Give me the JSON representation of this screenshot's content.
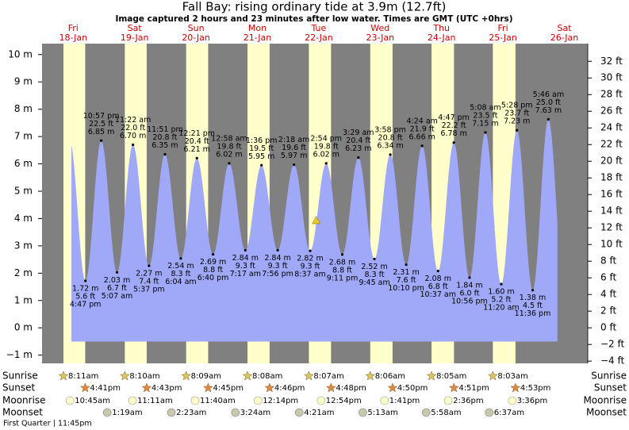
{
  "chart_data": {
    "type": "tide",
    "title": "Fall Bay: rising  ordinary tide at 3.9m (12.7ft)",
    "subtitle": "Image captured 2 hours and 23 minutes after low water. Times are GMT (UTC +0hrs)",
    "current_value": 3.9,
    "ylim": [
      -1.3,
      10.4
    ],
    "yticks": [
      {
        "value": -1,
        "label": "−1 m"
      },
      {
        "value": 0,
        "label": "0 m"
      },
      {
        "value": 1,
        "label": "1 m"
      },
      {
        "value": 2,
        "label": "2 m"
      },
      {
        "value": 3,
        "label": "3 m"
      },
      {
        "value": 4,
        "label": "4 m"
      },
      {
        "value": 5,
        "label": "5 m"
      },
      {
        "value": 6,
        "label": "6 m"
      },
      {
        "value": 7,
        "label": "7 m"
      },
      {
        "value": 8,
        "label": "8 m"
      },
      {
        "value": 9,
        "label": "9 m"
      },
      {
        "value": 10,
        "label": "10 m"
      }
    ],
    "y2lim": [
      -4.27,
      34.12
    ],
    "y2ticks": [
      {
        "value": -4,
        "label": "−4 ft"
      },
      {
        "value": -2,
        "label": "−2 ft"
      },
      {
        "value": 0,
        "label": "0 ft"
      },
      {
        "value": 2,
        "label": "2 ft"
      },
      {
        "value": 4,
        "label": "4 ft"
      },
      {
        "value": 6,
        "label": "6 ft"
      },
      {
        "value": 8,
        "label": "8 ft"
      },
      {
        "value": 10,
        "label": "10 ft"
      },
      {
        "value": 12,
        "label": "12 ft"
      },
      {
        "value": 14,
        "label": "14 ft"
      },
      {
        "value": 16,
        "label": "16 ft"
      },
      {
        "value": 18,
        "label": "18 ft"
      },
      {
        "value": 20,
        "label": "20 ft"
      },
      {
        "value": 22,
        "label": "22 ft"
      },
      {
        "value": 24,
        "label": "24 ft"
      },
      {
        "value": 26,
        "label": "26 ft"
      },
      {
        "value": 28,
        "label": "28 ft"
      },
      {
        "value": 30,
        "label": "30 ft"
      },
      {
        "value": 32,
        "label": "32 ft"
      }
    ],
    "legend": [
      "Sunrise",
      "Sunset",
      "Moonrise",
      "Moonset"
    ],
    "moon_phase": "First Quarter | 11:45pm",
    "days": [
      {
        "name": "Fri",
        "date": "18-Jan",
        "sunrise": "8:11am",
        "sunset": "4:41pm",
        "moonrise": "10:45am",
        "tides": [
          {
            "time": "4:47 pm",
            "value": 1.72,
            "value_label": "1.72 m",
            "feet": "5.6 ft"
          },
          {
            "time": "10:57 pm",
            "value": 6.85,
            "value_label": "6.85 m",
            "feet": "22.5 ft"
          }
        ]
      },
      {
        "name": "Sat",
        "date": "19-Jan",
        "sunrise": "8:10am",
        "sunset": "4:43pm",
        "moonrise": "11:11am",
        "moonset": "1:19am",
        "tides": [
          {
            "time": "5:07 am",
            "value": 2.03,
            "value_label": "2.03 m",
            "feet": "6.7 ft"
          },
          {
            "time": "11:22 am",
            "value": 6.7,
            "value_label": "6.70 m",
            "feet": "22.0 ft"
          },
          {
            "time": "5:37 pm",
            "value": 2.27,
            "value_label": "2.27 m",
            "feet": "7.4 ft"
          },
          {
            "time": "11:51 pm",
            "value": 6.35,
            "value_label": "6.35 m",
            "feet": "20.8 ft"
          }
        ]
      },
      {
        "name": "Sun",
        "date": "20-Jan",
        "sunrise": "8:09am",
        "sunset": "4:45pm",
        "moonrise": "11:40am",
        "moonset": "2:23am",
        "tides": [
          {
            "time": "6:04 am",
            "value": 2.54,
            "value_label": "2.54 m",
            "feet": "8.3 ft"
          },
          {
            "time": "12:21 pm",
            "value": 6.21,
            "value_label": "6.21 m",
            "feet": "20.4 ft"
          },
          {
            "time": "6:40 pm",
            "value": 2.69,
            "value_label": "2.69 m",
            "feet": "8.8 ft"
          }
        ]
      },
      {
        "name": "Mon",
        "date": "21-Jan",
        "sunrise": "8:08am",
        "sunset": "4:46pm",
        "moonrise": "12:14pm",
        "moonset": "3:24am",
        "tides": [
          {
            "time": "12:58 am",
            "value": 6.02,
            "value_label": "6.02 m",
            "feet": "19.8 ft"
          },
          {
            "time": "7:17 am",
            "value": 2.84,
            "value_label": "2.84 m",
            "feet": "9.3 ft"
          },
          {
            "time": "1:36 pm",
            "value": 5.95,
            "value_label": "5.95 m",
            "feet": "19.5 ft"
          },
          {
            "time": "7:56 pm",
            "value": 2.84,
            "value_label": "2.84 m",
            "feet": "9.3 ft"
          }
        ]
      },
      {
        "name": "Tue",
        "date": "22-Jan",
        "sunrise": "8:07am",
        "sunset": "4:48pm",
        "moonrise": "12:54pm",
        "moonset": "4:21am",
        "tides": [
          {
            "time": "2:18 am",
            "value": 5.97,
            "value_label": "5.97 m",
            "feet": "19.6 ft"
          },
          {
            "time": "8:37 am",
            "value": 2.82,
            "value_label": "2.82 m",
            "feet": "9.3 ft"
          },
          {
            "time": "2:54 pm",
            "value": 6.02,
            "value_label": "6.02 m",
            "feet": "19.8 ft"
          },
          {
            "time": "9:11 pm",
            "value": 2.68,
            "value_label": "2.68 m",
            "feet": "8.8 ft"
          }
        ]
      },
      {
        "name": "Wed",
        "date": "23-Jan",
        "sunrise": "8:06am",
        "sunset": "4:50pm",
        "moonrise": "1:41pm",
        "moonset": "5:13am",
        "tides": [
          {
            "time": "3:29 am",
            "value": 6.23,
            "value_label": "6.23 m",
            "feet": "20.4 ft"
          },
          {
            "time": "9:45 am",
            "value": 2.52,
            "value_label": "2.52 m",
            "feet": "8.3 ft"
          },
          {
            "time": "3:58 pm",
            "value": 6.34,
            "value_label": "6.34 m",
            "feet": "20.8 ft"
          },
          {
            "time": "10:10 pm",
            "value": 2.31,
            "value_label": "2.31 m",
            "feet": "7.6 ft"
          }
        ]
      },
      {
        "name": "Thu",
        "date": "24-Jan",
        "sunrise": "8:05am",
        "sunset": "4:51pm",
        "moonrise": "2:36pm",
        "moonset": "5:58am",
        "tides": [
          {
            "time": "4:24 am",
            "value": 6.66,
            "value_label": "6.66 m",
            "feet": "21.9 ft"
          },
          {
            "time": "10:37 am",
            "value": 2.08,
            "value_label": "2.08 m",
            "feet": "6.8 ft"
          },
          {
            "time": "4:47 pm",
            "value": 6.78,
            "value_label": "6.78 m",
            "feet": "22.2 ft"
          },
          {
            "time": "10:56 pm",
            "value": 1.84,
            "value_label": "1.84 m",
            "feet": "6.0 ft"
          }
        ]
      },
      {
        "name": "Fri",
        "date": "25-Jan",
        "sunrise": "8:03am",
        "sunset": "4:53pm",
        "moonrise": "3:36pm",
        "moonset": "6:37am",
        "tides": [
          {
            "time": "5:08 am",
            "value": 7.15,
            "value_label": "7.15 m",
            "feet": "23.5 ft"
          },
          {
            "time": "11:20 am",
            "value": 1.6,
            "value_label": "1.60 m",
            "feet": "5.2 ft"
          },
          {
            "time": "5:28 pm",
            "value": 7.23,
            "value_label": "7.23 m",
            "feet": "23.7 ft"
          },
          {
            "time": "11:36 pm",
            "value": 1.38,
            "value_label": "1.38 m",
            "feet": "4.5 ft"
          }
        ]
      },
      {
        "name": "Sat",
        "date": "26-Jan",
        "tides": [
          {
            "time": "5:46 am",
            "value": 7.63,
            "value_label": "7.63 m",
            "feet": "25.0 ft"
          }
        ]
      }
    ]
  }
}
